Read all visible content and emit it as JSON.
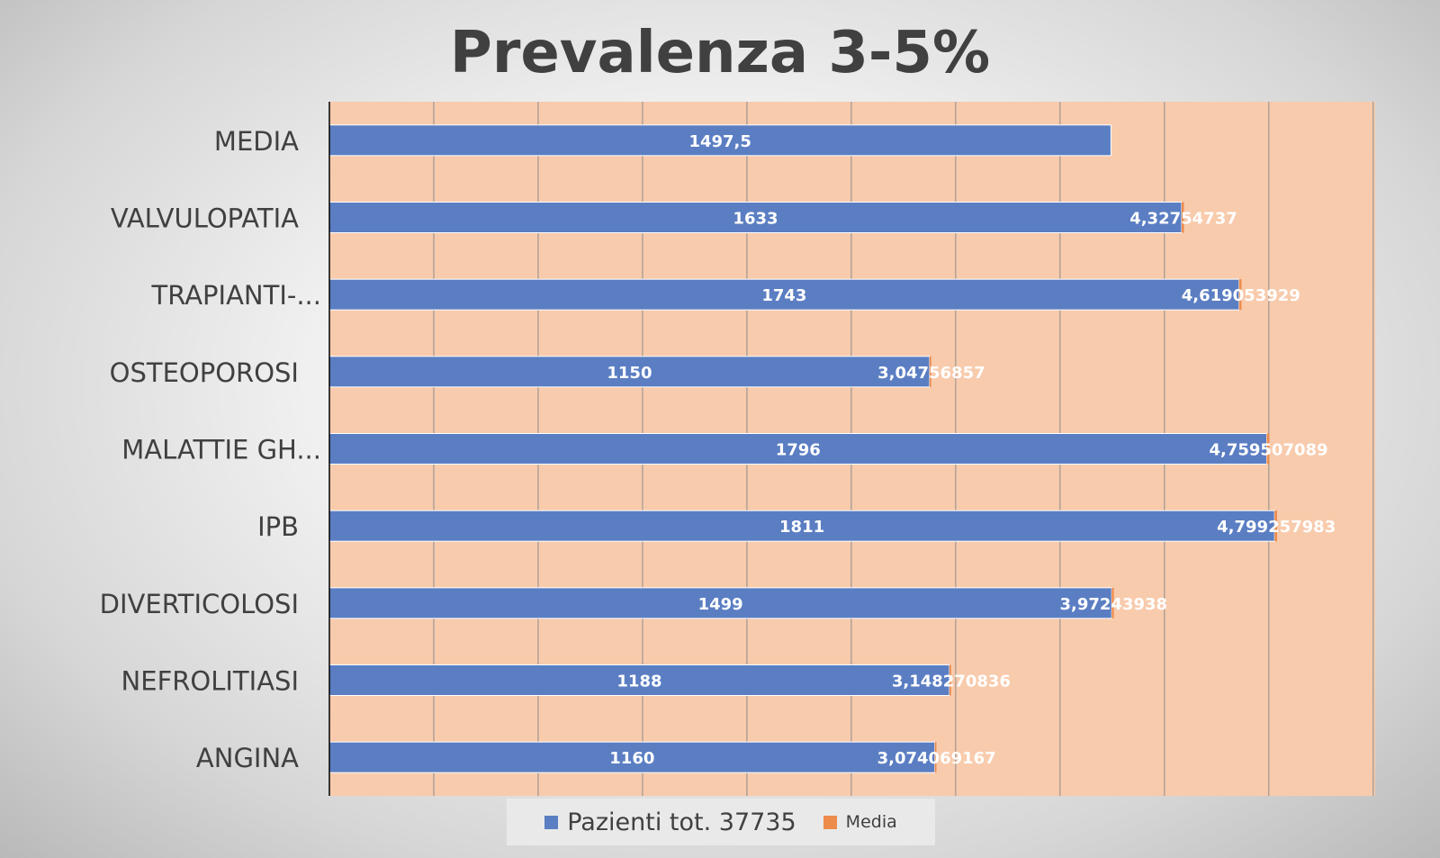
{
  "chart_data": {
    "type": "bar",
    "orientation": "horizontal",
    "title": "Prevalenza 3-5%",
    "categories": [
      "ANGINA",
      "NEFROLITIASI",
      "DIVERTICOLOSI",
      "IPB",
      "MALATTIE GH...",
      "OSTEOPOROSI",
      "TRAPIANTI-...",
      "VALVULOPATIA",
      "MEDIA"
    ],
    "series": [
      {
        "name": "Pazienti tot. 37735",
        "color": "#5b7ec3",
        "values": [
          1160,
          1188,
          1499,
          1811,
          1796,
          1150,
          1743,
          1633,
          1497.5
        ],
        "value_labels": [
          "1160",
          "1188",
          "1499",
          "1811",
          "1796",
          "1150",
          "1743",
          "1633",
          "1497,5"
        ]
      },
      {
        "name": "Media",
        "color": "#ed8b4b",
        "values": [
          3.074069167,
          3.148270836,
          3.97243938,
          4.799257983,
          4.759507089,
          3.04756857,
          4.619053929,
          4.32754737,
          null
        ],
        "value_labels": [
          "3,074069167",
          "3,148270836",
          "3,97243938",
          "4,799257983",
          "4,759507089",
          "3,04756857",
          "4,619053929",
          "4,32754737",
          ""
        ]
      }
    ],
    "xlim": [
      0,
      2000
    ],
    "grid": true,
    "legend_position": "bottom",
    "plot_background": "#f8cbad"
  }
}
